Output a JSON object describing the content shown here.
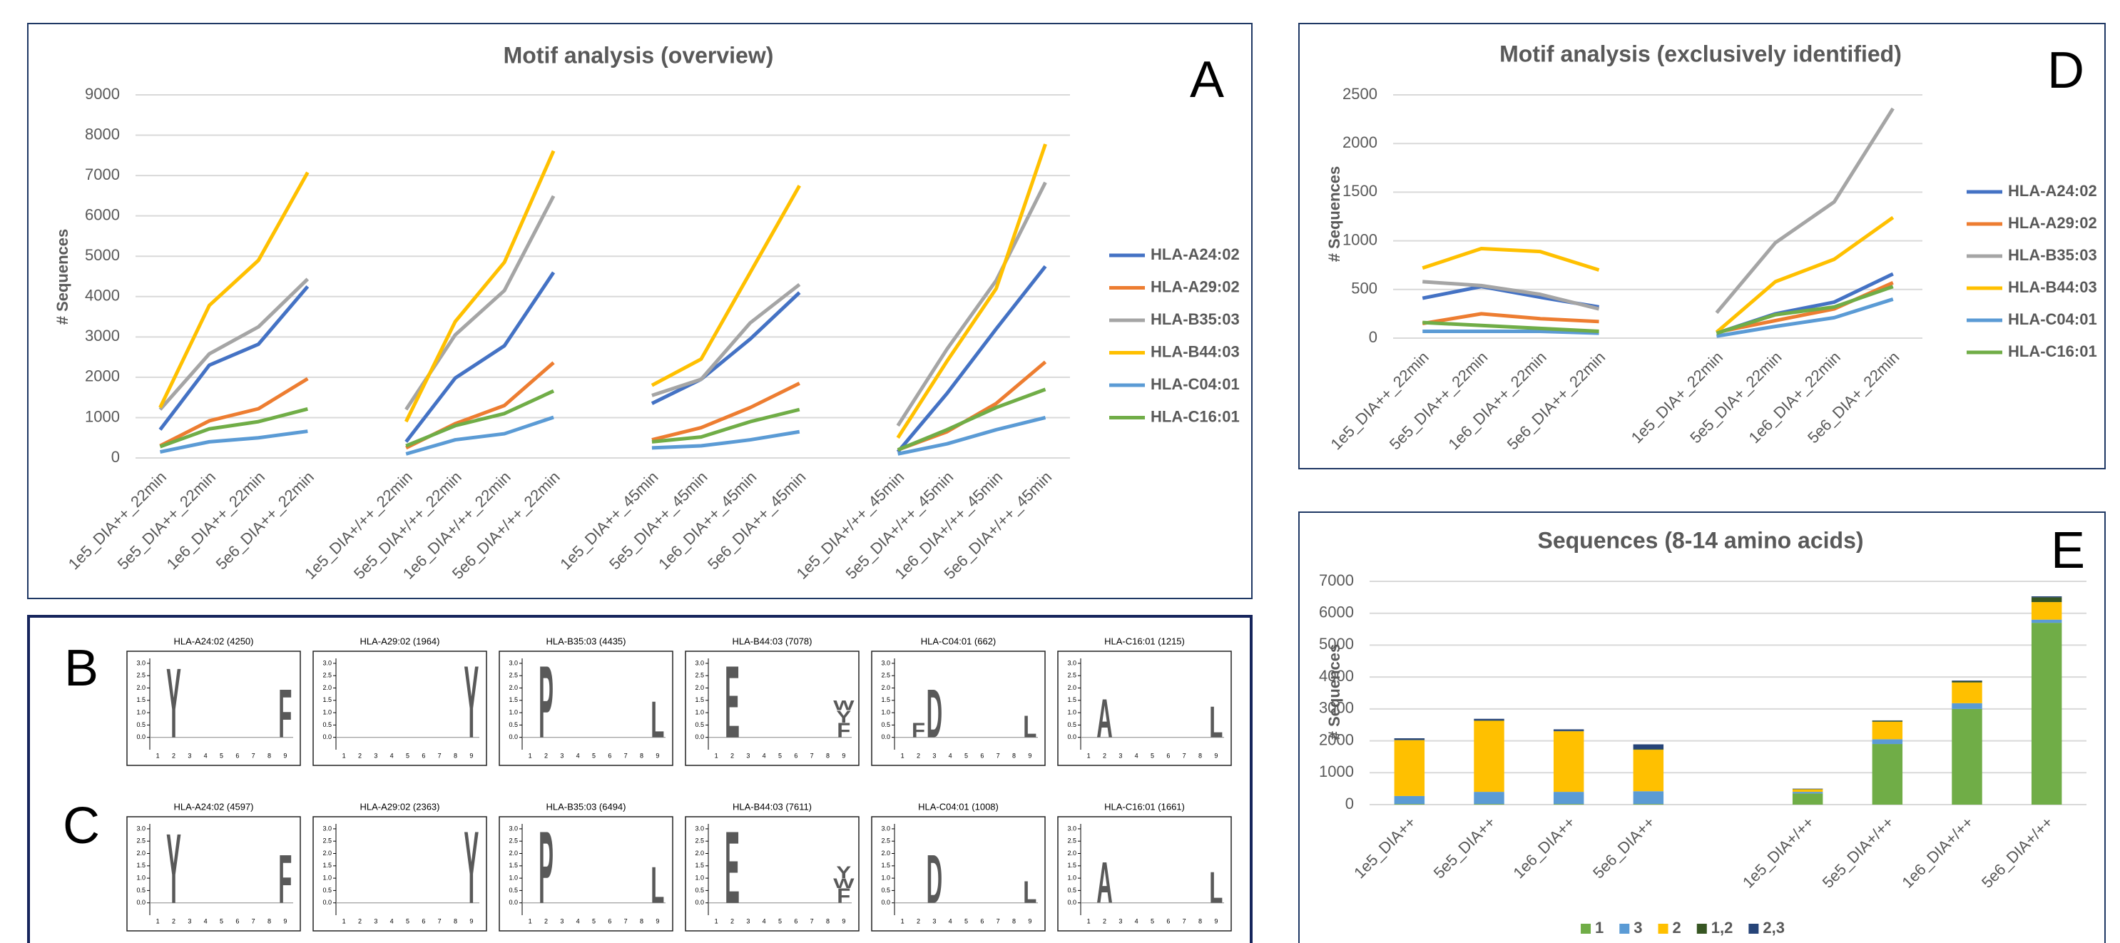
{
  "chart_data": [
    {
      "type": "line",
      "title": "Motif analysis (overview)",
      "panel_label": "A",
      "y_label": "# Sequences",
      "categories": [
        "1e5_DIA++_22min",
        "5e5_DIA++_22min",
        "1e6_DIA++_22min",
        "5e6_DIA++_22min",
        null,
        "1e5_DIA+/++_22min",
        "5e5_DIA+/++_22min",
        "1e6_DIA+/++_22min",
        "5e6_DIA+/++_22min",
        null,
        "1e5_DIA++_45min",
        "5e5_DIA++_45min",
        "1e6_DIA++_45min",
        "5e6_DIA++_45min",
        null,
        "1e5_DIA+/++_45min",
        "5e5_DIA+/++_45min",
        "1e6_DIA+/++_45min",
        "5e6_DIA+/++_45min"
      ],
      "series": [
        {
          "name": "HLA-A24:02",
          "color": "#4472c4",
          "values": [
            700,
            2300,
            2820,
            4250,
            null,
            400,
            1980,
            2780,
            4600,
            null,
            1350,
            1950,
            2950,
            4100,
            null,
            150,
            1600,
            3200,
            4750
          ]
        },
        {
          "name": "HLA-A29:02",
          "color": "#ed7d31",
          "values": [
            300,
            920,
            1220,
            1964,
            null,
            250,
            850,
            1300,
            2363,
            null,
            450,
            750,
            1250,
            1850,
            null,
            200,
            650,
            1350,
            2380
          ]
        },
        {
          "name": "HLA-B35:03",
          "color": "#a5a5a5",
          "values": [
            1200,
            2580,
            3250,
            4435,
            null,
            1200,
            3050,
            4150,
            6494,
            null,
            1550,
            1950,
            3350,
            4300,
            null,
            800,
            2700,
            4400,
            6830
          ]
        },
        {
          "name": "HLA-B44:03",
          "color": "#ffc000",
          "values": [
            1250,
            3780,
            4900,
            7078,
            null,
            900,
            3380,
            4850,
            7611,
            null,
            1800,
            2450,
            4600,
            6750,
            null,
            500,
            2400,
            4200,
            7780
          ]
        },
        {
          "name": "HLA-C04:01",
          "color": "#5b9bd5",
          "values": [
            150,
            400,
            500,
            662,
            null,
            100,
            450,
            600,
            1008,
            null,
            250,
            300,
            450,
            650,
            null,
            100,
            350,
            700,
            1000
          ]
        },
        {
          "name": "HLA-C16:01",
          "color": "#70ad47",
          "values": [
            280,
            720,
            900,
            1215,
            null,
            300,
            800,
            1100,
            1661,
            null,
            400,
            520,
            900,
            1200,
            null,
            200,
            700,
            1250,
            1700
          ]
        }
      ],
      "ylim": [
        0,
        9000
      ],
      "yticks": [
        0,
        1000,
        2000,
        3000,
        4000,
        5000,
        6000,
        7000,
        8000,
        9000
      ],
      "grid": true,
      "legend": "right"
    },
    {
      "type": "line",
      "title": "Motif analysis (exclusively identified)",
      "panel_label": "D",
      "y_label": "# Sequences",
      "categories": [
        "1e5_DIA++_22min",
        "5e5_DIA++_22min",
        "1e6_DIA++_22min",
        "5e6_DIA++_22min",
        null,
        "1e5_DIA+_22min",
        "5e5_DIA+_22min",
        "1e6_DIA+_22min",
        "5e6_DIA+_22min"
      ],
      "series": [
        {
          "name": "HLA-A24:02",
          "color": "#4472c4",
          "values": [
            410,
            530,
            420,
            320,
            null,
            50,
            250,
            370,
            660
          ]
        },
        {
          "name": "HLA-A29:02",
          "color": "#ed7d31",
          "values": [
            150,
            250,
            200,
            170,
            null,
            60,
            180,
            300,
            570
          ]
        },
        {
          "name": "HLA-B35:03",
          "color": "#a5a5a5",
          "values": [
            580,
            540,
            450,
            300,
            null,
            260,
            980,
            1400,
            2360
          ]
        },
        {
          "name": "HLA-B44:03",
          "color": "#ffc000",
          "values": [
            720,
            920,
            890,
            700,
            null,
            60,
            580,
            810,
            1240
          ]
        },
        {
          "name": "HLA-C04:01",
          "color": "#5b9bd5",
          "values": [
            70,
            70,
            70,
            50,
            null,
            20,
            120,
            210,
            400
          ]
        },
        {
          "name": "HLA-C16:01",
          "color": "#70ad47",
          "values": [
            160,
            130,
            100,
            70,
            null,
            50,
            240,
            320,
            530
          ]
        }
      ],
      "ylim": [
        0,
        2500
      ],
      "yticks": [
        0,
        500,
        1000,
        1500,
        2000,
        2500
      ],
      "grid": true,
      "legend": "right"
    },
    {
      "type": "bar",
      "stacked": true,
      "title": "Sequences (8-14 amino acids)",
      "panel_label": "E",
      "y_label": "# Sequences",
      "categories": [
        "1e5_DIA++",
        "5e5_DIA++",
        "1e6_DIA++",
        "5e6_DIA++",
        null,
        "1e5_DIA+/++",
        "5e5_DIA+/++",
        "1e6_DIA+/++",
        "5e6_DIA+/++"
      ],
      "series": [
        {
          "name": "1",
          "color": "#70ad47",
          "values": [
            20,
            20,
            20,
            20,
            null,
            350,
            1900,
            3000,
            5700
          ]
        },
        {
          "name": "3",
          "color": "#5b9bd5",
          "values": [
            250,
            380,
            380,
            400,
            null,
            50,
            150,
            180,
            100
          ]
        },
        {
          "name": "2",
          "color": "#ffc000",
          "values": [
            1750,
            2230,
            1900,
            1300,
            null,
            80,
            550,
            650,
            550
          ]
        },
        {
          "name": "1,2",
          "color": "#375623",
          "values": [
            10,
            10,
            10,
            20,
            null,
            10,
            30,
            40,
            150
          ]
        },
        {
          "name": "2,3",
          "color": "#264478",
          "values": [
            50,
            50,
            50,
            150,
            null,
            10,
            10,
            20,
            30
          ]
        }
      ],
      "ylim": [
        0,
        7000
      ],
      "yticks": [
        0,
        1000,
        2000,
        3000,
        4000,
        5000,
        6000,
        7000
      ],
      "grid": true,
      "legend": "bottom"
    }
  ],
  "logos": {
    "axis": {
      "ylim": [
        -0.5,
        3.2
      ],
      "yticks": [
        {
          "value": 0,
          "label": "0.0"
        },
        {
          "value": 0.5,
          "label": "0.5"
        },
        {
          "value": 1,
          "label": "1.0"
        },
        {
          "value": 1.5,
          "label": "1.5"
        },
        {
          "value": 2,
          "label": "2.0"
        },
        {
          "value": 2.5,
          "label": "2.5"
        },
        {
          "value": 3,
          "label": "3.0"
        }
      ],
      "positions": [
        1,
        2,
        3,
        4,
        5,
        6,
        7,
        8,
        9
      ]
    },
    "letter_colors": {
      "Y": "#22c422",
      "F": "#000000",
      "P": "#000000",
      "L": "#000000",
      "E": "#dd0000",
      "D": "#dd0000",
      "W": "#000000",
      "A": "#000000",
      "M": "#000000"
    },
    "rows": [
      {
        "label": "B",
        "panels": [
          {
            "title": "HLA-A24:02 (4250)",
            "residues": [
              {
                "position": 2,
                "letter": "Y",
                "bits": 2.9
              },
              {
                "position": 9,
                "letter": "F",
                "bits": 2.0
              }
            ]
          },
          {
            "title": "HLA-A29:02 (1964)",
            "residues": [
              {
                "position": 9,
                "letter": "Y",
                "bits": 3.0
              }
            ]
          },
          {
            "title": "HLA-B35:03 (4435)",
            "residues": [
              {
                "position": 2,
                "letter": "P",
                "bits": 3.0
              },
              {
                "position": 9,
                "letter": "L",
                "bits": 1.5
              }
            ]
          },
          {
            "title": "HLA-B44:03 (7078)",
            "residues": [
              {
                "position": 2,
                "letter": "E",
                "bits": 3.0
              },
              {
                "position": 9,
                "letter": "F",
                "bits": 0.6
              },
              {
                "position": 9,
                "letter": "Y",
                "bits": 0.5
              },
              {
                "position": 9,
                "letter": "W",
                "bits": 0.4
              }
            ]
          },
          {
            "title": "HLA-C04:01 (662)",
            "residues": [
              {
                "position": 2,
                "letter": "F",
                "bits": 0.6
              },
              {
                "position": 3,
                "letter": "D",
                "bits": 2.0
              },
              {
                "position": 9,
                "letter": "L",
                "bits": 0.9
              }
            ]
          },
          {
            "title": "HLA-C16:01 (1215)",
            "residues": [
              {
                "position": 2,
                "letter": "A",
                "bits": 1.6
              },
              {
                "position": 9,
                "letter": "L",
                "bits": 1.3
              }
            ]
          }
        ]
      },
      {
        "label": "C",
        "panels": [
          {
            "title": "HLA-A24:02 (4597)",
            "residues": [
              {
                "position": 2,
                "letter": "Y",
                "bits": 2.9
              },
              {
                "position": 9,
                "letter": "F",
                "bits": 2.0
              }
            ]
          },
          {
            "title": "HLA-A29:02 (2363)",
            "residues": [
              {
                "position": 9,
                "letter": "Y",
                "bits": 3.0
              }
            ]
          },
          {
            "title": "HLA-B35:03 (6494)",
            "residues": [
              {
                "position": 2,
                "letter": "P",
                "bits": 3.0
              },
              {
                "position": 9,
                "letter": "L",
                "bits": 1.5
              }
            ]
          },
          {
            "title": "HLA-B44:03 (7611)",
            "residues": [
              {
                "position": 2,
                "letter": "E",
                "bits": 3.0
              },
              {
                "position": 9,
                "letter": "F",
                "bits": 0.6
              },
              {
                "position": 9,
                "letter": "W",
                "bits": 0.4
              },
              {
                "position": 9,
                "letter": "Y",
                "bits": 0.5
              }
            ]
          },
          {
            "title": "HLA-C04:01 (1008)",
            "residues": [
              {
                "position": 3,
                "letter": "D",
                "bits": 2.0
              },
              {
                "position": 9,
                "letter": "L",
                "bits": 0.9
              }
            ]
          },
          {
            "title": "HLA-C16:01 (1661)",
            "residues": [
              {
                "position": 2,
                "letter": "A",
                "bits": 1.7
              },
              {
                "position": 9,
                "letter": "L",
                "bits": 1.3
              }
            ]
          }
        ]
      }
    ]
  }
}
